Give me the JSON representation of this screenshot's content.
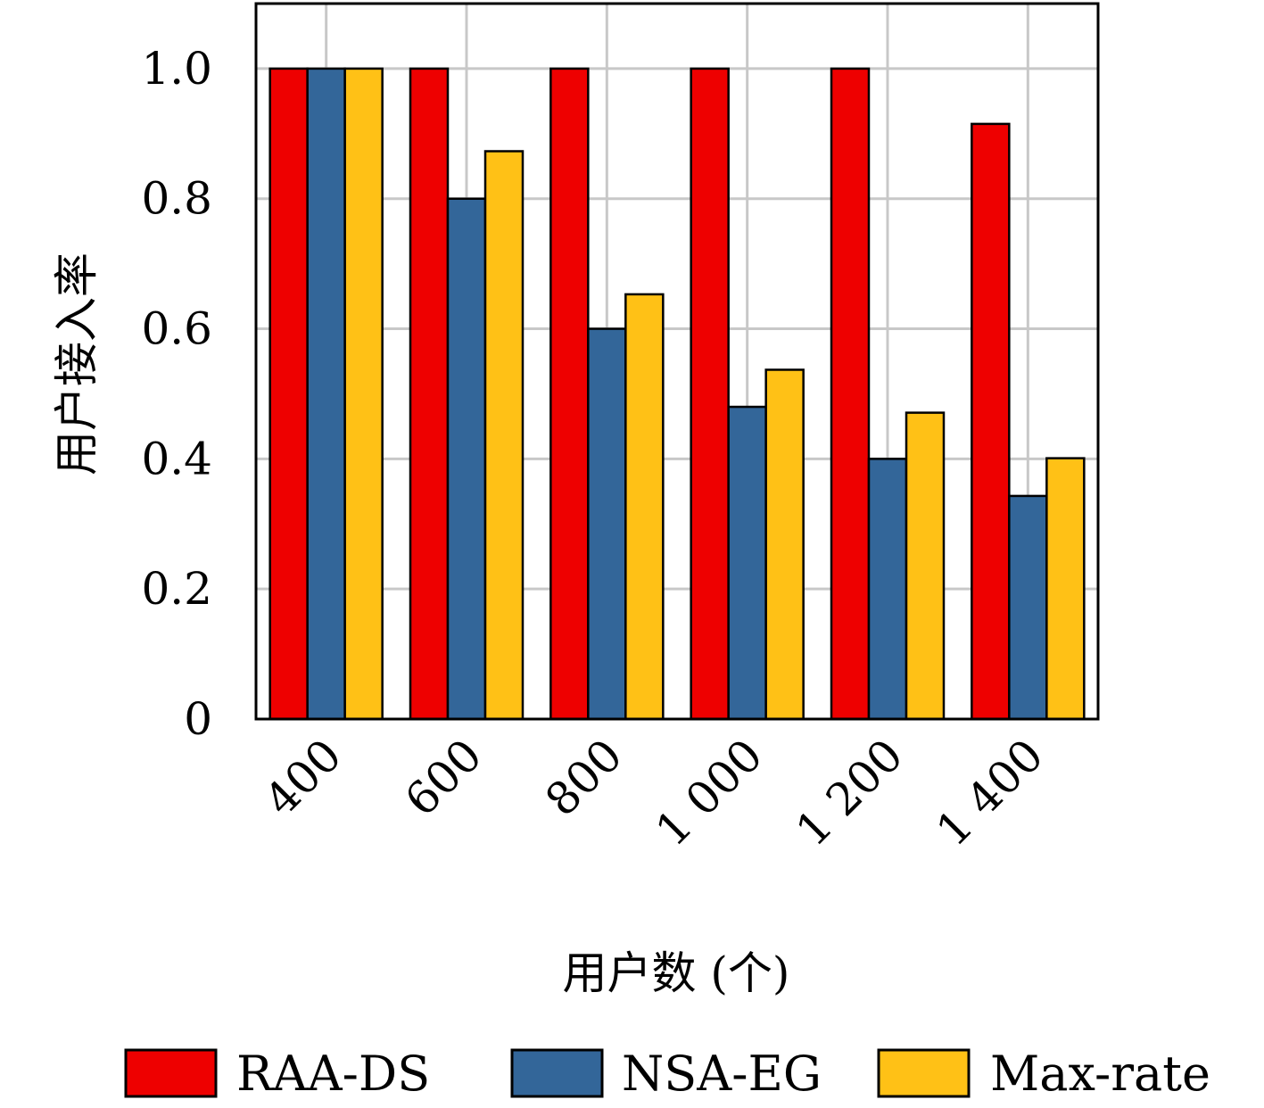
{
  "chart_data": {
    "type": "bar",
    "categories": [
      "400",
      "600",
      "800",
      "1 000",
      "1 200",
      "1 400"
    ],
    "series": [
      {
        "name": "RAA-DS",
        "color": "#ee0000",
        "values": [
          1.0,
          1.0,
          1.0,
          1.0,
          1.0,
          0.915
        ]
      },
      {
        "name": "NSA-EG",
        "color": "#336699",
        "values": [
          1.0,
          0.8,
          0.6,
          0.48,
          0.4,
          0.343
        ]
      },
      {
        "name": "Max-rate",
        "color": "#ffc116",
        "values": [
          1.0,
          0.873,
          0.653,
          0.537,
          0.471,
          0.401
        ]
      }
    ],
    "title": "",
    "xlabel": "用户数 (个)",
    "ylabel": "用户接入率",
    "ylim": [
      0,
      1.1
    ],
    "yticks": [
      0,
      0.2,
      0.4,
      0.6,
      0.8,
      1.0
    ],
    "ytick_labels": [
      "0",
      "0.2",
      "0.4",
      "0.6",
      "0.8",
      "1.0"
    ],
    "grid": true,
    "legend_position": "bottom"
  }
}
